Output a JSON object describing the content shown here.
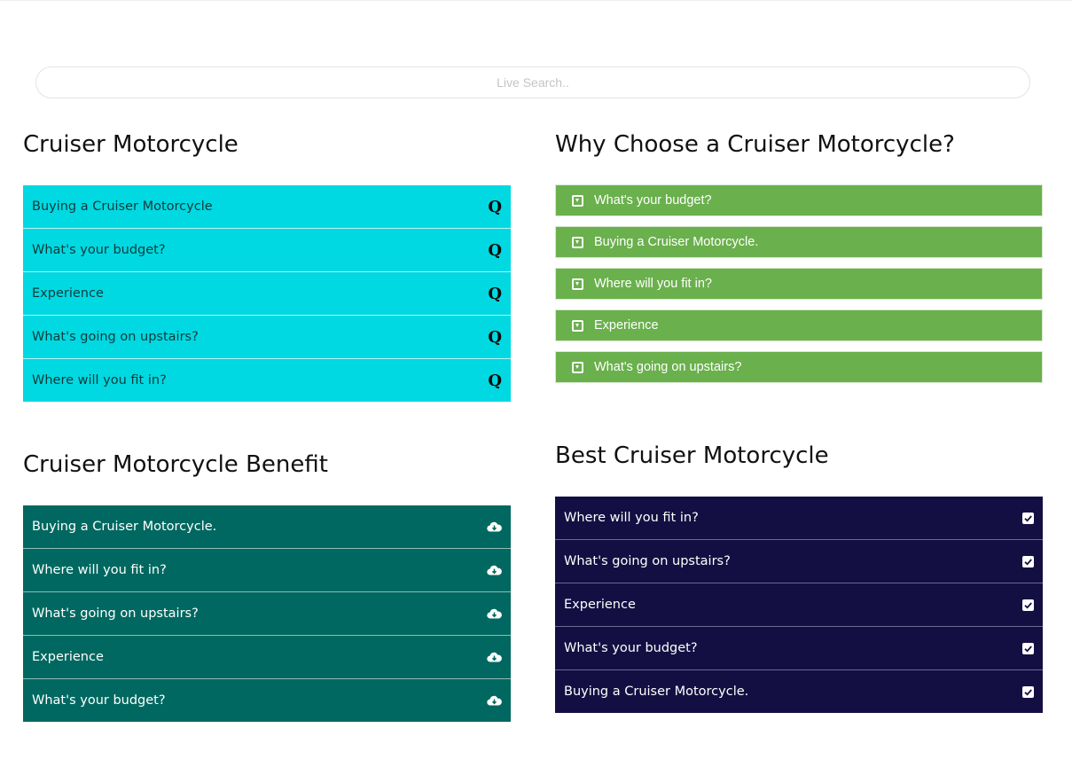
{
  "search": {
    "placeholder": "Live Search.."
  },
  "sections": {
    "cruiser": {
      "title": "Cruiser Motorcycle",
      "icon": "question-icon",
      "items": [
        "Buying a Cruiser Motorcycle",
        "What's your budget?",
        "Experience",
        "What's going on upstairs?",
        "Where will you fit in?"
      ]
    },
    "why": {
      "title": "Why Choose a Cruiser Motorcycle?",
      "icon": "caret-square-down-icon",
      "items": [
        "What's your budget?",
        "Buying a Cruiser Motorcycle.",
        "Where will you fit in?",
        "Experience",
        "What's going on upstairs?"
      ]
    },
    "benefit": {
      "title": "Cruiser Motorcycle Benefit",
      "icon": "cloud-download-icon",
      "items": [
        "Buying a Cruiser Motorcycle.",
        "Where will you fit in?",
        "What's going on upstairs?",
        "Experience",
        "What's your budget?"
      ]
    },
    "best": {
      "title": "Best Cruiser Motorcycle",
      "icon": "check-square-icon",
      "items": [
        "Where will you fit in?",
        "What's going on upstairs?",
        "Experience",
        "What's your budget?",
        "Buying a Cruiser Motorcycle."
      ]
    }
  },
  "colors": {
    "cyan": "#00d9e1",
    "green": "#6ab04c",
    "teal": "#006860",
    "navy": "#140f42"
  }
}
